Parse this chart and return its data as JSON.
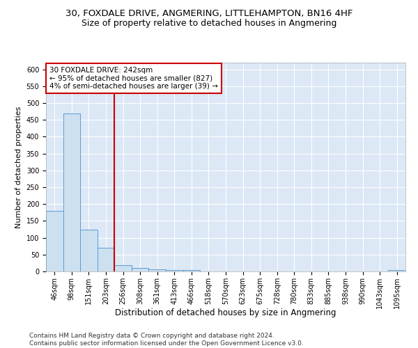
{
  "title": "30, FOXDALE DRIVE, ANGMERING, LITTLEHAMPTON, BN16 4HF",
  "subtitle": "Size of property relative to detached houses in Angmering",
  "xlabel": "Distribution of detached houses by size in Angmering",
  "ylabel": "Number of detached properties",
  "bar_labels": [
    "46sqm",
    "98sqm",
    "151sqm",
    "203sqm",
    "256sqm",
    "308sqm",
    "361sqm",
    "413sqm",
    "466sqm",
    "518sqm",
    "570sqm",
    "623sqm",
    "675sqm",
    "728sqm",
    "780sqm",
    "833sqm",
    "885sqm",
    "938sqm",
    "990sqm",
    "1043sqm",
    "1095sqm"
  ],
  "bar_values": [
    180,
    470,
    125,
    70,
    18,
    10,
    7,
    5,
    5,
    0,
    0,
    0,
    0,
    0,
    0,
    0,
    0,
    0,
    0,
    0,
    5
  ],
  "bar_color": "#cce0f0",
  "bar_edge_color": "#5b9bd5",
  "vline_index": 3.5,
  "vline_color": "#cc0000",
  "annotation_text": "30 FOXDALE DRIVE: 242sqm\n← 95% of detached houses are smaller (827)\n4% of semi-detached houses are larger (39) →",
  "annotation_box_color": "#cc0000",
  "ylim": [
    0,
    620
  ],
  "yticks": [
    0,
    50,
    100,
    150,
    200,
    250,
    300,
    350,
    400,
    450,
    500,
    550,
    600
  ],
  "background_color": "#dce8f5",
  "grid_color": "#ffffff",
  "footer_text": "Contains HM Land Registry data © Crown copyright and database right 2024.\nContains public sector information licensed under the Open Government Licence v3.0.",
  "title_fontsize": 9.5,
  "subtitle_fontsize": 9,
  "xlabel_fontsize": 8.5,
  "ylabel_fontsize": 8,
  "tick_fontsize": 7,
  "annotation_fontsize": 7.5,
  "footer_fontsize": 6.5
}
